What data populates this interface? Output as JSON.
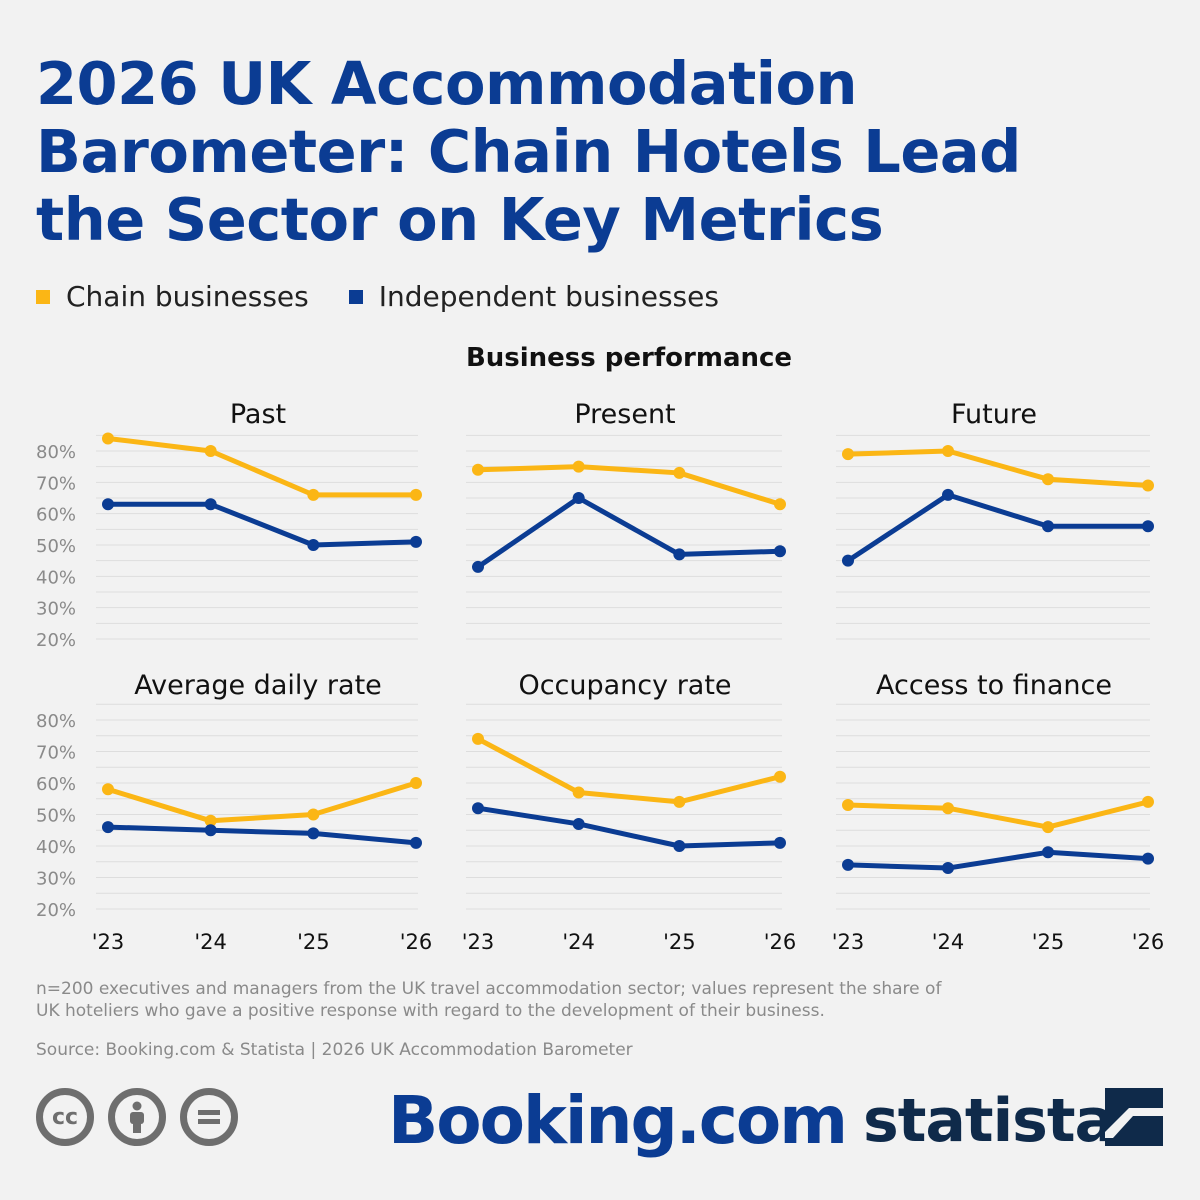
{
  "title": "2026 UK Accommodation Barometer: Chain Hotels Lead the Sector on Key Metrics",
  "legend": [
    {
      "label": "Chain businesses",
      "color": "#fbb615"
    },
    {
      "label": "Independent businesses",
      "color": "#0b3c93"
    }
  ],
  "section_title": "Business performance",
  "colors": {
    "chain": "#fbb615",
    "independent": "#0b3c93",
    "title": "#0b3c93",
    "grid": "#dddddd"
  },
  "chart_data": [
    {
      "type": "line",
      "title": "Past",
      "categories": [
        "'23",
        "'24",
        "'25",
        "'26"
      ],
      "ylim": [
        20,
        85
      ],
      "y_ticks": [
        "80%",
        "70%",
        "60%",
        "50%",
        "40%",
        "30%",
        "20%"
      ],
      "series": [
        {
          "name": "Chain businesses",
          "values": [
            84,
            80,
            66,
            66
          ]
        },
        {
          "name": "Independent businesses",
          "values": [
            63,
            63,
            50,
            51
          ]
        }
      ]
    },
    {
      "type": "line",
      "title": "Present",
      "categories": [
        "'23",
        "'24",
        "'25",
        "'26"
      ],
      "ylim": [
        20,
        85
      ],
      "series": [
        {
          "name": "Chain businesses",
          "values": [
            74,
            75,
            73,
            63
          ]
        },
        {
          "name": "Independent businesses",
          "values": [
            43,
            65,
            47,
            48
          ]
        }
      ]
    },
    {
      "type": "line",
      "title": "Future",
      "categories": [
        "'23",
        "'24",
        "'25",
        "'26"
      ],
      "ylim": [
        20,
        85
      ],
      "series": [
        {
          "name": "Chain businesses",
          "values": [
            79,
            80,
            71,
            69
          ]
        },
        {
          "name": "Independent businesses",
          "values": [
            45,
            66,
            56,
            56
          ]
        }
      ]
    },
    {
      "type": "line",
      "title": "Average daily rate",
      "categories": [
        "'23",
        "'24",
        "'25",
        "'26"
      ],
      "ylim": [
        20,
        85
      ],
      "y_ticks": [
        "80%",
        "70%",
        "60%",
        "50%",
        "40%",
        "30%",
        "20%"
      ],
      "x_ticks": [
        "'23",
        "'24",
        "'25",
        "'26"
      ],
      "series": [
        {
          "name": "Chain businesses",
          "values": [
            58,
            48,
            50,
            60
          ]
        },
        {
          "name": "Independent businesses",
          "values": [
            46,
            45,
            44,
            41
          ]
        }
      ]
    },
    {
      "type": "line",
      "title": "Occupancy rate",
      "categories": [
        "'23",
        "'24",
        "'25",
        "'26"
      ],
      "ylim": [
        20,
        85
      ],
      "x_ticks": [
        "'23",
        "'24",
        "'25",
        "'26"
      ],
      "series": [
        {
          "name": "Chain businesses",
          "values": [
            74,
            57,
            54,
            62
          ]
        },
        {
          "name": "Independent businesses",
          "values": [
            52,
            47,
            40,
            41
          ]
        }
      ]
    },
    {
      "type": "line",
      "title": "Access to finance",
      "categories": [
        "'23",
        "'24",
        "'25",
        "'26"
      ],
      "ylim": [
        20,
        85
      ],
      "x_ticks": [
        "'23",
        "'24",
        "'25",
        "'26"
      ],
      "series": [
        {
          "name": "Chain businesses",
          "values": [
            53,
            52,
            46,
            54
          ]
        },
        {
          "name": "Independent businesses",
          "values": [
            34,
            33,
            38,
            36
          ]
        }
      ]
    }
  ],
  "note": "n=200 executives and managers from the UK travel accommodation sector; values represent the share of UK hoteliers who gave a positive response with regard to the development of their business.",
  "source": "Source: Booking.com & Statista | 2026 UK Accommodation Barometer",
  "footer": {
    "cc_icons": [
      "creative-commons-icon",
      "attribution-icon",
      "no-derivatives-icon"
    ],
    "cc_text": "cc",
    "booking_logo": "Booking.com",
    "statista_logo": "statista"
  }
}
